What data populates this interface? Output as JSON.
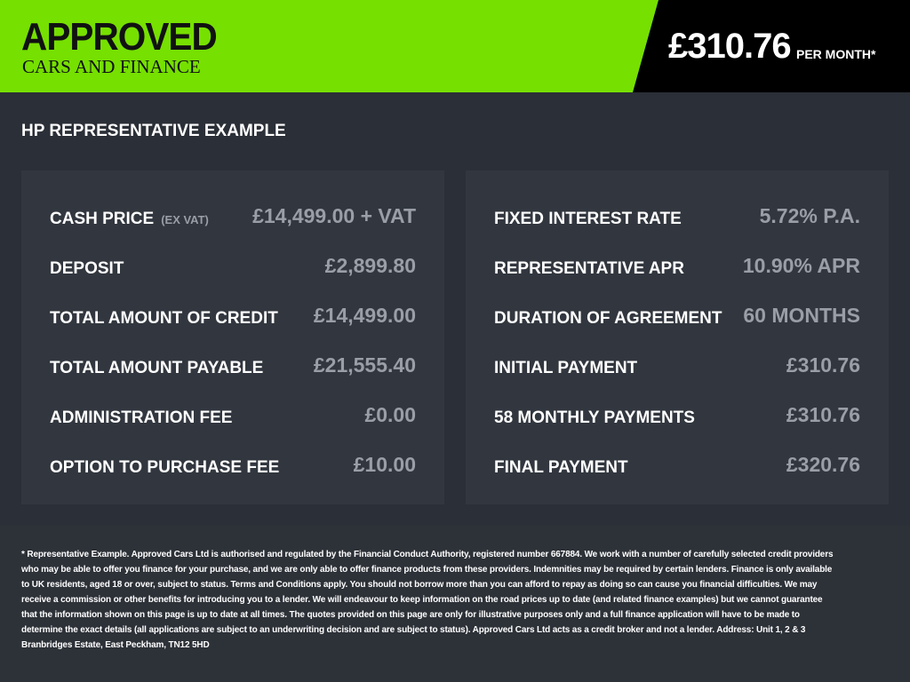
{
  "header": {
    "logo_top": "APPROVED",
    "logo_bottom": "CARS AND FINANCE",
    "monthly_price": "£310.76",
    "per_month": "PER MONTH*",
    "brand_color": "#76e000"
  },
  "title": "HP REPRESENTATIVE EXAMPLE",
  "left_rows": [
    {
      "label": "CASH PRICE",
      "sub": "(EX VAT)",
      "value": "£14,499.00 + VAT"
    },
    {
      "label": "DEPOSIT",
      "value": "£2,899.80"
    },
    {
      "label": "TOTAL AMOUNT OF CREDIT",
      "value": "£14,499.00"
    },
    {
      "label": "TOTAL AMOUNT PAYABLE",
      "value": "£21,555.40"
    },
    {
      "label": "ADMINISTRATION FEE",
      "value": "£0.00"
    },
    {
      "label": "OPTION TO PURCHASE FEE",
      "value": "£10.00"
    }
  ],
  "right_rows": [
    {
      "label": "FIXED INTEREST RATE",
      "value": "5.72% P.A."
    },
    {
      "label": "REPRESENTATIVE APR",
      "value": "10.90% APR"
    },
    {
      "label": "DURATION OF AGREEMENT",
      "value": "60 MONTHS"
    },
    {
      "label": "INITIAL PAYMENT",
      "value": "£310.76"
    },
    {
      "label": "58 MONTHLY PAYMENTS",
      "value": "£310.76"
    },
    {
      "label": "FINAL PAYMENT",
      "value": "£320.76"
    }
  ],
  "footer": "* Representative Example. Approved Cars Ltd is authorised and regulated by the Financial Conduct Authority, registered number 667884. We work with a number of carefully selected credit providers who may be able to offer you finance for your purchase, and we are only able to offer finance products from these providers. Indemnities may be required by certain lenders. Finance is only available to UK residents, aged 18 or over, subject to status. Terms and Conditions apply. You should not borrow more than you can afford to repay as doing so can cause you financial difficulties. We may receive a commission or other benefits for introducing you to a lender. We will endeavour to keep information on the road prices up to date (and related finance examples) but we cannot guarantee that the information shown on this page is up to date at all times. The quotes provided on this page are only for illustrative purposes only and a full finance application will have to be made to determine the exact details (all applications are subject to an underwriting decision and are subject to status). Approved Cars Ltd acts as a credit broker and not a lender. Address: Unit 1, 2 & 3 Branbridges Estate, East Peckham, TN12 5HD"
}
